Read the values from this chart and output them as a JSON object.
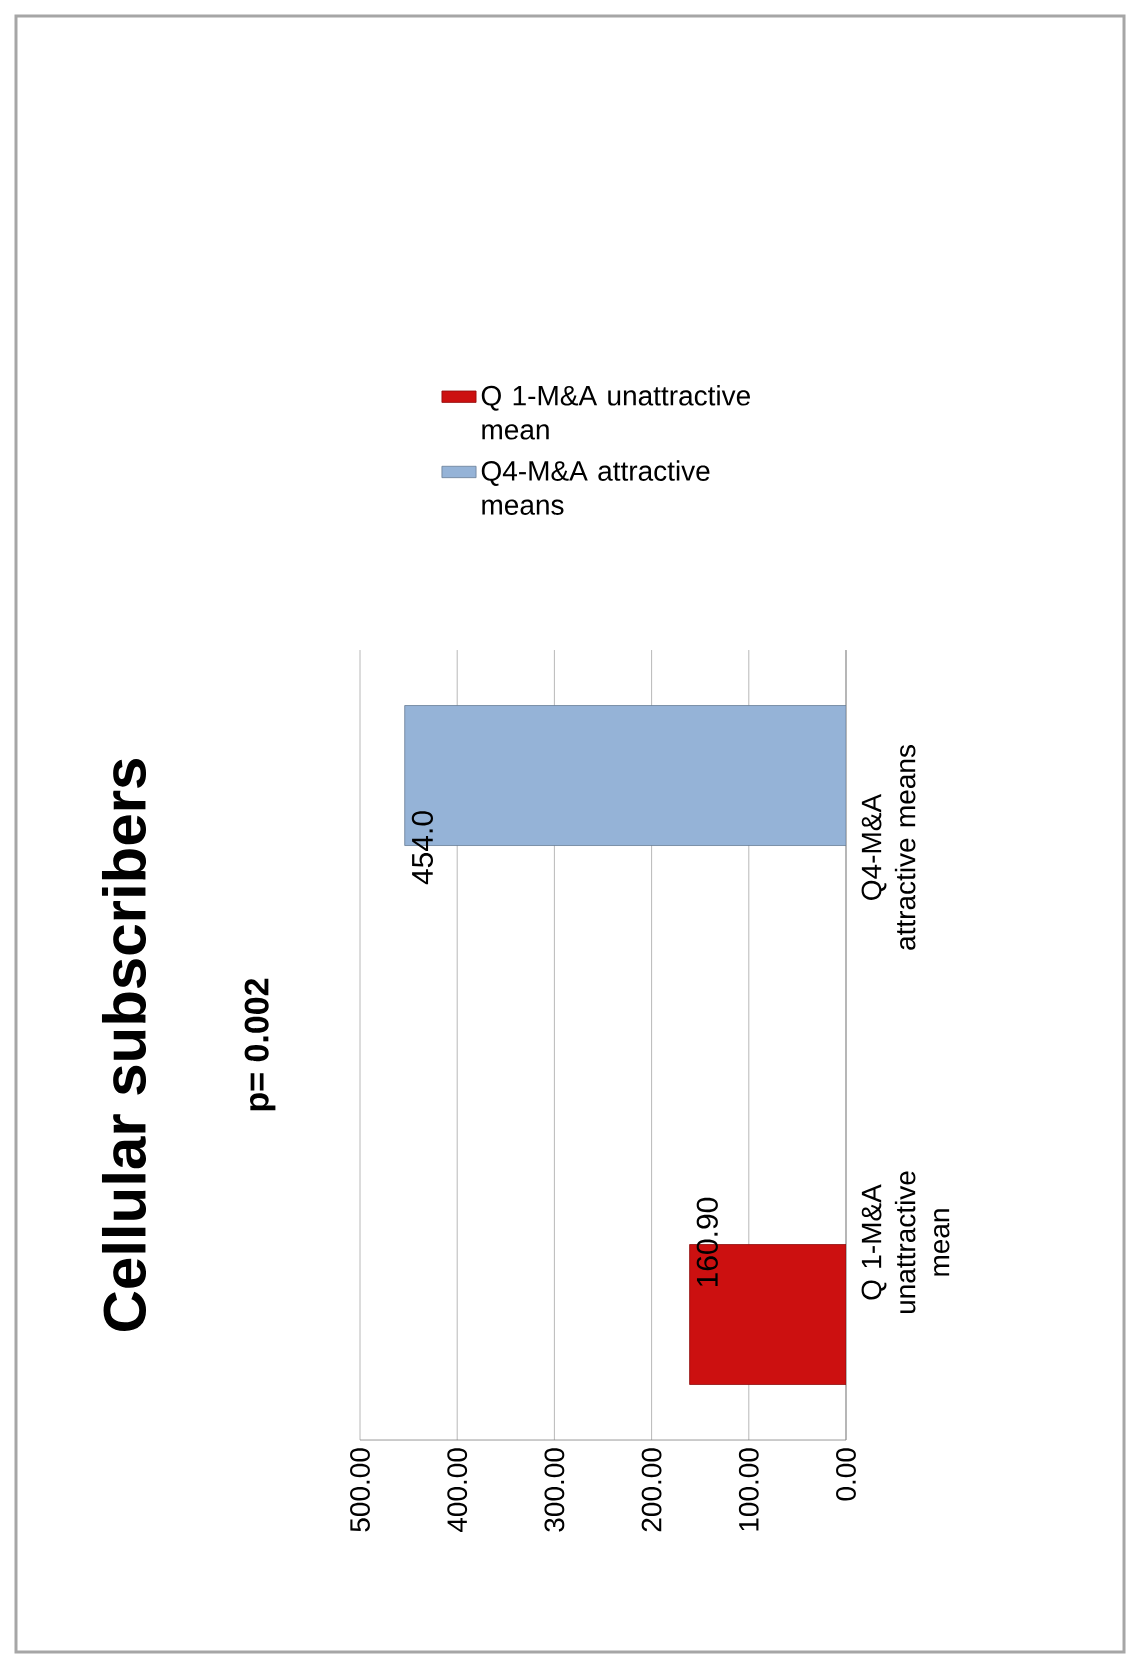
{
  "chart_data": {
    "type": "bar",
    "orientation": "horizontal",
    "title": "Cellular subscribers",
    "subtitle": "p= 0.002",
    "categories": [
      "Q4-M&A attractive means",
      "Q 1-M&A unattractive mean"
    ],
    "series": [
      {
        "name": "Q 1-M&A unattractive mean",
        "color": "#cc1010",
        "values": [
          null,
          160.9
        ],
        "value_labels": [
          null,
          "160.90"
        ]
      },
      {
        "name": "Q4-M&A attractive means",
        "color": "#95b3d7",
        "values": [
          454.0,
          null
        ],
        "value_labels": [
          "454.0",
          null
        ]
      }
    ],
    "xlim": [
      500,
      0
    ],
    "xticks": [
      {
        "value": 0,
        "label": "0.00"
      },
      {
        "value": 100,
        "label": "100.00"
      },
      {
        "value": 200,
        "label": "200.00"
      },
      {
        "value": 300,
        "label": "300.00"
      },
      {
        "value": 400,
        "label": "400.00"
      },
      {
        "value": 500,
        "label": "500.00"
      }
    ],
    "grid": "x",
    "legend": "top"
  }
}
